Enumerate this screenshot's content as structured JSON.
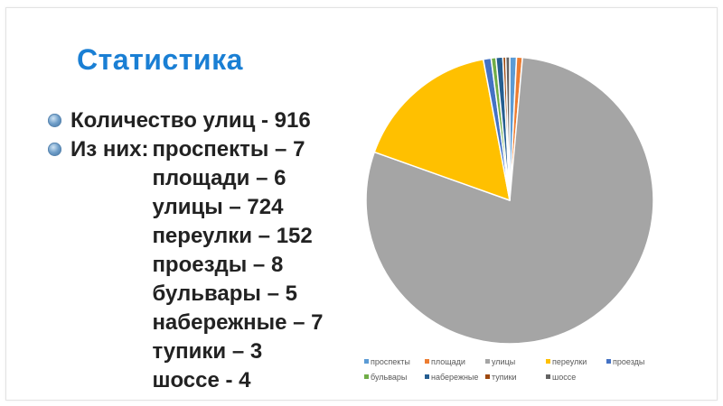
{
  "slide": {
    "title": "Статистика",
    "total_label": "Количество улиц - 916",
    "breakdown_label": "Из них:",
    "breakdown": [
      "проспекты – 7",
      "площади – 6",
      "улицы – 724",
      "переулки – 152",
      "проезды – 8",
      "бульвары – 5",
      "набережные – 7",
      "тупики – 3",
      "шоссе - 4"
    ]
  },
  "chart_data": {
    "type": "pie",
    "title": "",
    "legend_position": "bottom",
    "categories": [
      "проспекты",
      "площади",
      "улицы",
      "переулки",
      "проезды",
      "бульвары",
      "набережные",
      "тупики",
      "шоссе"
    ],
    "values": [
      7,
      6,
      724,
      152,
      8,
      5,
      7,
      3,
      4
    ],
    "colors": [
      "#5b9bd5",
      "#ed7d31",
      "#a5a5a5",
      "#ffc000",
      "#4472c4",
      "#70ad47",
      "#255e91",
      "#9e480e",
      "#636363"
    ]
  }
}
